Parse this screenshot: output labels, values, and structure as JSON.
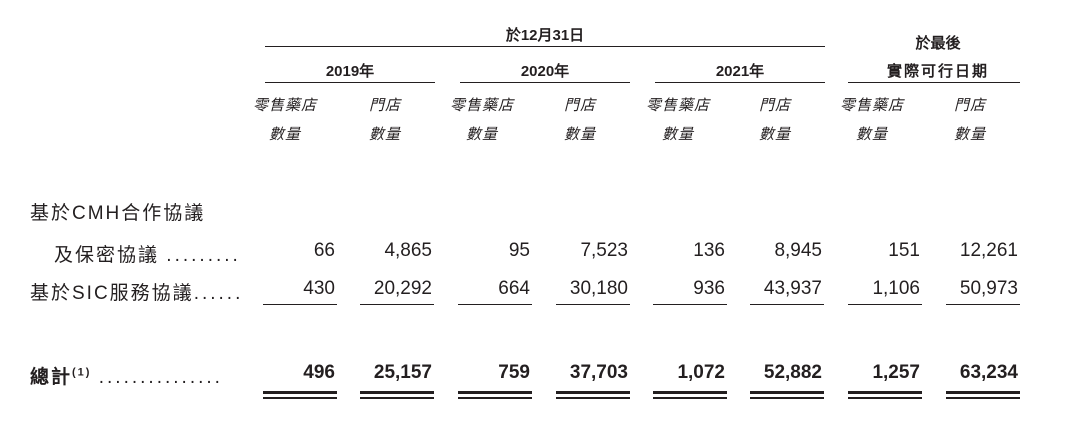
{
  "header": {
    "group_title": "於12月31日",
    "latest_title_line1": "於最後",
    "latest_title_line2": "實際可行日期",
    "years": [
      "2019年",
      "2020年",
      "2021年"
    ],
    "sub_pharmacy_line1": "零售藥店",
    "sub_pharmacy_line2": "數量",
    "sub_store_line1": "門店",
    "sub_store_line2": "數量"
  },
  "rows": {
    "cmh_label_line1": "基於CMH合作協議",
    "cmh_label_line2": "及保密協議",
    "cmh_dots": ".........",
    "cmh_values": [
      "66",
      "4,865",
      "95",
      "7,523",
      "136",
      "8,945",
      "151",
      "12,261"
    ],
    "sic_label": "基於SIC服務協議",
    "sic_dots": "......",
    "sic_values": [
      "430",
      "20,292",
      "664",
      "30,180",
      "936",
      "43,937",
      "1,106",
      "50,973"
    ],
    "total_label": "總計",
    "total_note": "(1)",
    "total_dots": "...............",
    "total_values": [
      "496",
      "25,157",
      "759",
      "37,703",
      "1,072",
      "52,882",
      "1,257",
      "63,234"
    ]
  }
}
